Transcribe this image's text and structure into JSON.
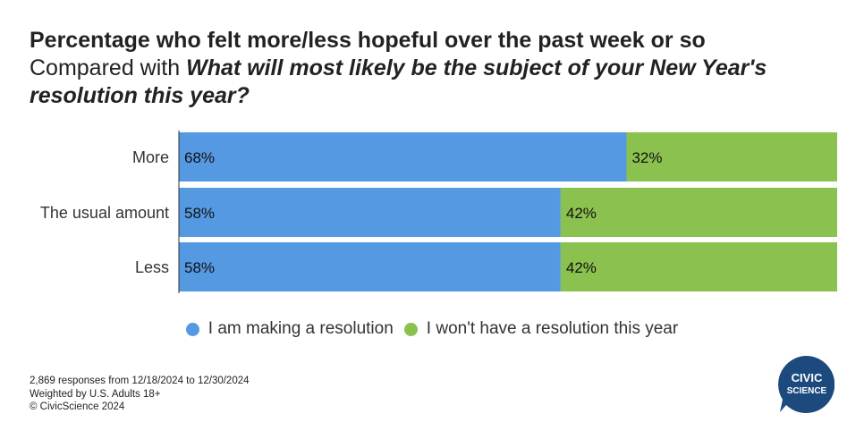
{
  "title": "Percentage who felt more/less hopeful over the past week or so",
  "subtitle_prefix": "Compared with",
  "subtitle_question": "What will most likely be the subject of your New Year's resolution this year?",
  "chart_data": {
    "type": "bar",
    "orientation": "horizontal",
    "stacked": true,
    "percent_stacked": true,
    "categories": [
      "More",
      "The usual amount",
      "Less"
    ],
    "series": [
      {
        "name": "I am making a resolution",
        "values": [
          68,
          58,
          58
        ],
        "color": "#5599e3"
      },
      {
        "name": "I won't have a resolution this year",
        "values": [
          32,
          42,
          42
        ],
        "color": "#8bc14e"
      }
    ],
    "value_suffix": "%",
    "xlim": [
      0,
      100
    ],
    "legend_position": "bottom"
  },
  "footer": {
    "line1": "2,869 responses from 12/18/2024 to 12/30/2024",
    "line2": "Weighted by U.S. Adults 18+",
    "line3": "© CivicScience 2024"
  },
  "logo": {
    "line1": "CIVIC",
    "line2": "SCIENCE",
    "color": "#1d4a7e"
  }
}
